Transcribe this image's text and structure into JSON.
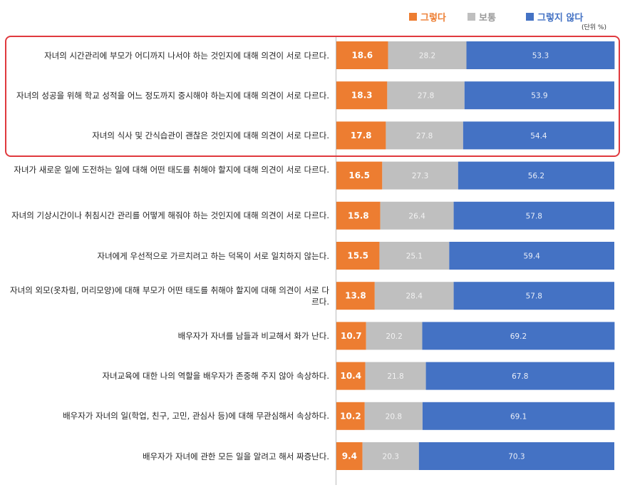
{
  "colors": {
    "agree": "#ed7d31",
    "neutral": "#bfbfbf",
    "disagree": "#4472c4",
    "highlight": "#e0393e"
  },
  "legend": {
    "agree": "그렇다",
    "neutral": "보통",
    "disagree": "그렇지 않다",
    "unit": "(단위 %)"
  },
  "chart_data": {
    "type": "bar",
    "stacked": true,
    "orientation": "horizontal",
    "xlim": [
      0,
      100
    ],
    "categories": [
      "자녀의 시간관리에 부모가 어디까지 나서야 하는 것인지에 대해 의견이 서로 다르다.",
      "자녀의 성공을 위해 학교 성적을 어느 정도까지 중시해야 하는지에 대해 의견이 서로 다르다.",
      "자녀의 식사 및 간식습관이 괜찮은 것인지에 대해 의견이 서로 다르다.",
      "자녀가 새로운 일에 도전하는 일에 대해 어떤 태도를 취해야 할지에 대해 의견이 서로 다르다.",
      "자녀의 기상시간이나 취침시간 관리를 어떻게 해줘야 하는 것인지에 대해 의견이 서로 다르다.",
      "자녀에게 우선적으로 가르치려고 하는 덕목이 서로 일치하지 않는다.",
      "자녀의 외모(옷차림, 머리모양)에 대해 부모가 어떤 태도를 취해야 할지에 대해 의견이 서로 다르다.",
      "배우자가 자녀를 남들과 비교해서 화가 난다.",
      "자녀교육에 대한 나의 역할을 배우자가 존중해 주지 않아 속상하다.",
      "배우자가 자녀의 일(학업, 친구, 고민, 관심사 등)에 대해 무관심해서 속상하다.",
      "배우자가 자녀에 관한 모든 일을 알려고 해서 짜증난다."
    ],
    "series": [
      {
        "name": "그렇다",
        "values": [
          18.6,
          18.3,
          17.8,
          16.5,
          15.8,
          15.5,
          13.8,
          10.7,
          10.4,
          10.2,
          9.4
        ]
      },
      {
        "name": "보통",
        "values": [
          28.2,
          27.8,
          27.8,
          27.3,
          26.4,
          25.1,
          28.4,
          20.2,
          21.8,
          20.8,
          20.3
        ]
      },
      {
        "name": "그렇지 않다",
        "values": [
          53.3,
          53.9,
          54.4,
          56.2,
          57.8,
          59.4,
          57.8,
          69.2,
          67.8,
          69.1,
          70.3
        ]
      }
    ],
    "highlighted_categories": [
      0,
      1,
      2
    ],
    "legend_position": "top-right"
  }
}
